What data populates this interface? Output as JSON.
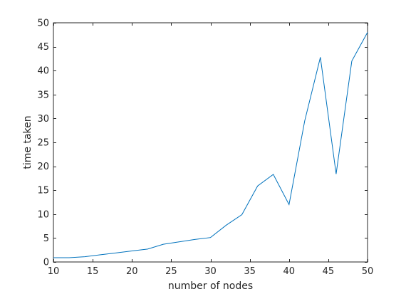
{
  "chart_data": {
    "type": "line",
    "title": "",
    "xlabel": "number of nodes",
    "ylabel": "time taken",
    "xlim": [
      10,
      50
    ],
    "ylim": [
      0,
      50
    ],
    "xticks": [
      10,
      15,
      20,
      25,
      30,
      35,
      40,
      45,
      50
    ],
    "yticks": [
      0,
      5,
      10,
      15,
      20,
      25,
      30,
      35,
      40,
      45,
      50
    ],
    "grid": false,
    "legend": "none",
    "series": [
      {
        "color": "#0072bd",
        "x": [
          10,
          12,
          14,
          16,
          18,
          20,
          22,
          24,
          26,
          28,
          30,
          32,
          34,
          36,
          38,
          40,
          42,
          44,
          46,
          48,
          50
        ],
        "y": [
          0.9,
          0.9,
          1.1,
          1.5,
          1.9,
          2.3,
          2.7,
          3.7,
          4.2,
          4.7,
          5.1,
          7.7,
          9.9,
          15.9,
          18.3,
          12.0,
          29.5,
          42.8,
          18.4,
          42.0,
          48.0
        ]
      }
    ]
  }
}
